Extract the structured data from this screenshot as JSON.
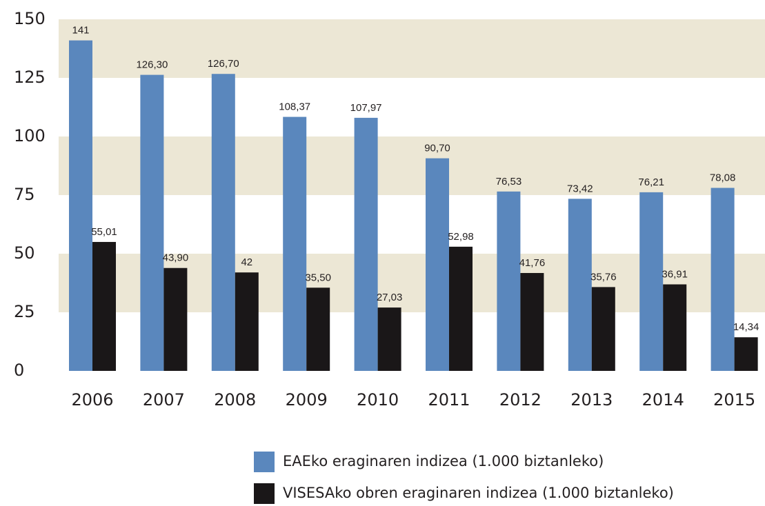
{
  "chart_data": {
    "type": "bar",
    "categories": [
      "2006",
      "2007",
      "2008",
      "2009",
      "2010",
      "2011",
      "2012",
      "2013",
      "2014",
      "2015"
    ],
    "series": [
      {
        "name": "EAEko eraginaren indizea (1.000 biztanleko)",
        "color": "#5a87bd",
        "values": [
          141,
          126.3,
          126.7,
          108.37,
          107.97,
          90.7,
          76.53,
          73.42,
          76.21,
          78.08
        ],
        "value_labels": [
          "141",
          "126,30",
          "126,70",
          "108,37",
          "107,97",
          "90,70",
          "76,53",
          "73,42",
          "76,21",
          "78,08"
        ]
      },
      {
        "name": "VISESAko obren eraginaren indizea (1.000 biztanleko)",
        "color": "#1a1718",
        "values": [
          55.01,
          43.9,
          42,
          35.5,
          27.03,
          52.98,
          41.76,
          35.76,
          36.91,
          14.34
        ],
        "value_labels": [
          "55,01",
          "43,90",
          "42",
          "35,50",
          "27,03",
          "52,98",
          "41,76",
          "35,76",
          "36,91",
          "14,34"
        ]
      }
    ],
    "ylim": [
      0,
      150
    ],
    "yticks": [
      0,
      25,
      50,
      75,
      100,
      125,
      150
    ],
    "grid": true,
    "band_color": "#ece7d5",
    "legend": "bottom"
  }
}
